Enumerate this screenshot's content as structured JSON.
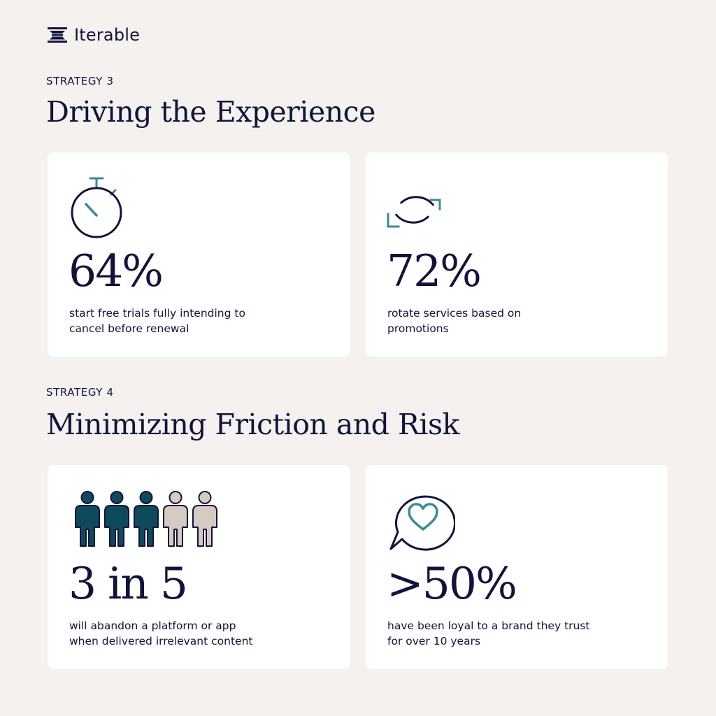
{
  "brand": {
    "name": "Iterable"
  },
  "strategy3": {
    "eyebrow": "STRATEGY 3",
    "title": "Driving the Experience",
    "cards": [
      {
        "icon": "stopwatch-icon",
        "stat": "64%",
        "desc_line1": "start free trials fully intending to",
        "desc_line2": "cancel before renewal"
      },
      {
        "icon": "refresh-cycle-icon",
        "stat": "72%",
        "desc_line1": "rotate services based on",
        "desc_line2": "promotions"
      }
    ]
  },
  "strategy4": {
    "eyebrow": "STRATEGY 4",
    "title": "Minimizing Friction and Risk",
    "cards": [
      {
        "icon": "people-ratio-icon",
        "people_highlighted": 3,
        "people_total": 5,
        "stat": "3 in 5",
        "desc_line1": "will abandon a platform or app",
        "desc_line2": "when delivered irrelevant content"
      },
      {
        "icon": "heart-speech-bubble-icon",
        "stat": ">50%",
        "desc_line1": "have been loyal to a brand they trust",
        "desc_line2": "for over 10 years"
      }
    ]
  },
  "colors": {
    "background": "#f4f1ee",
    "card": "#ffffff",
    "navy": "#12133d",
    "teal": "#3a8c96",
    "dark_teal": "#0f4a5c",
    "beige": "#d4ccc2"
  }
}
